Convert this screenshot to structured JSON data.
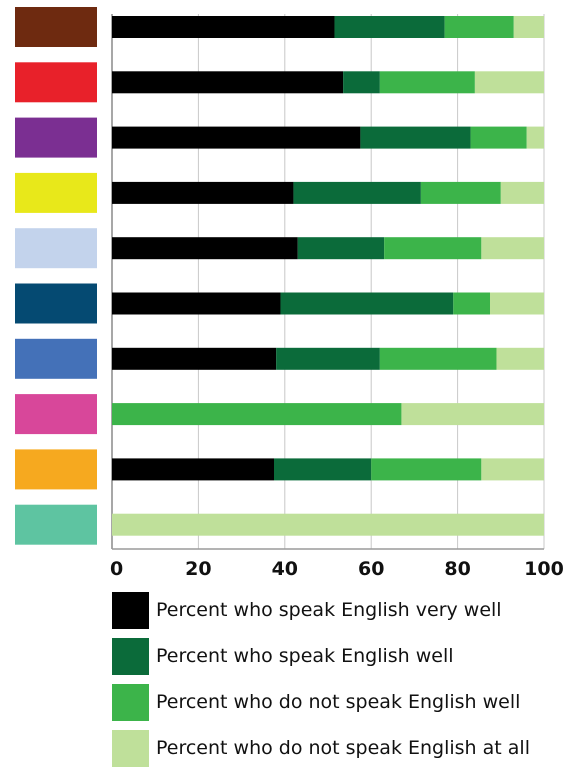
{
  "chart_data": {
    "type": "bar",
    "orientation": "horizontal",
    "stacked": true,
    "xlim": [
      0,
      100
    ],
    "x_ticks": [
      "0",
      "20",
      "40",
      "60",
      "80",
      "100"
    ],
    "grid": true,
    "legend_position": "bottom",
    "category_color_keys": [
      "#6e2a10",
      "#e8212a",
      "#7b2f92",
      "#e8e81a",
      "#c3d3ec",
      "#054a72",
      "#4471b8",
      "#d8479a",
      "#f6a91f",
      "#5ec4a1"
    ],
    "series": [
      {
        "name": "Percent who speak English very well",
        "color": "#000000",
        "values": [
          51.5,
          53.5,
          57.5,
          42,
          43,
          39,
          38,
          0,
          37.5,
          0
        ]
      },
      {
        "name": "Percent who speak English well",
        "color": "#0b6b3a",
        "values": [
          25.5,
          8.5,
          25.5,
          29.5,
          20,
          40,
          24,
          0,
          22.5,
          0
        ]
      },
      {
        "name": "Percent who do not speak English well",
        "color": "#3cb44a",
        "values": [
          16,
          22,
          13,
          18.5,
          22.5,
          8.5,
          27,
          67,
          25.5,
          0
        ]
      },
      {
        "name": "Percent who do not speak English at all",
        "color": "#bfe09a",
        "values": [
          7,
          16,
          4,
          10,
          14.5,
          12.5,
          11,
          33,
          14.5,
          100
        ]
      }
    ]
  }
}
